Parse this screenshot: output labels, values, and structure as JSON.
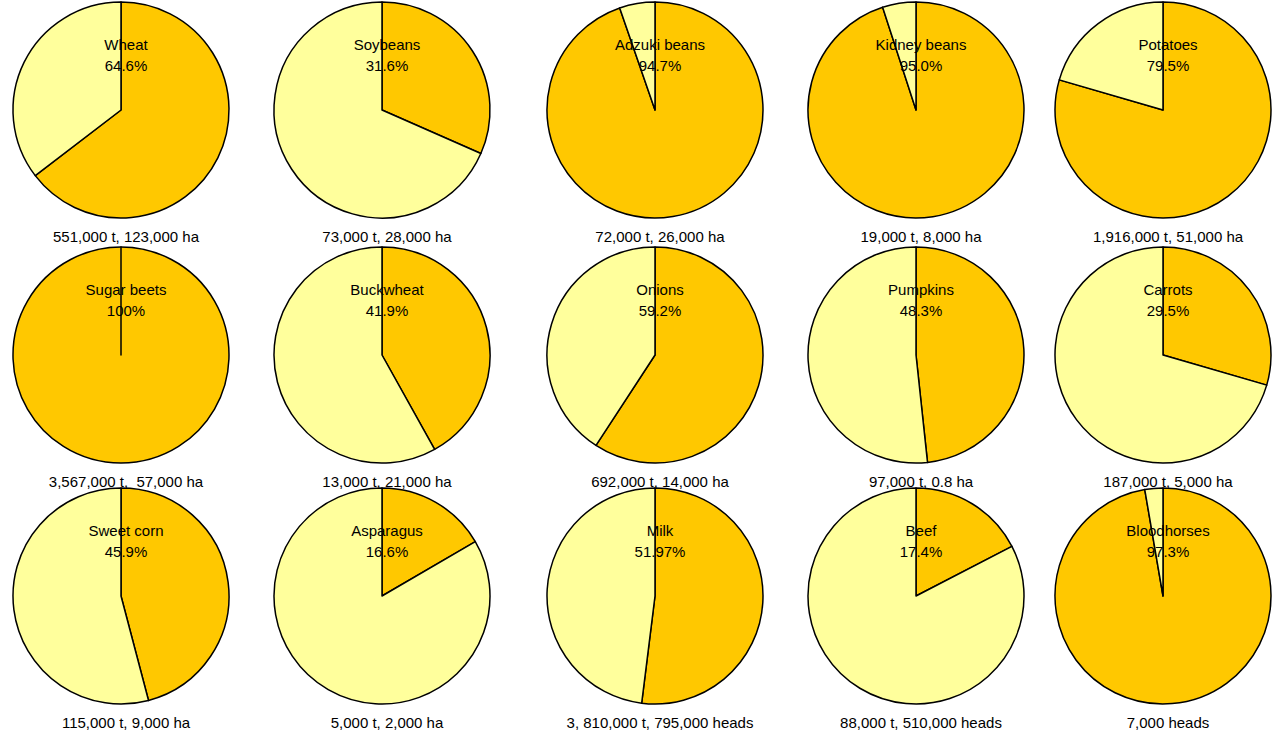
{
  "chart_data": [
    {
      "type": "pie",
      "title": "Wheat",
      "subtitle": "551,000 t, 123,000 ha",
      "values": [
        64.6,
        35.4
      ],
      "value_labels": [
        "64.6%",
        null
      ],
      "colors": [
        "#FFC800",
        "#FFFF9C"
      ]
    },
    {
      "type": "pie",
      "title": "Soybeans",
      "subtitle": "73,000 t, 28,000 ha",
      "values": [
        31.6,
        68.4
      ],
      "value_labels": [
        "31.6%",
        null
      ],
      "colors": [
        "#FFC800",
        "#FFFF9C"
      ]
    },
    {
      "type": "pie",
      "title": "Adzuki beans",
      "subtitle": "72,000 t, 26,000 ha",
      "values": [
        94.7,
        5.3
      ],
      "value_labels": [
        "94.7%",
        null
      ],
      "colors": [
        "#FFC800",
        "#FFFF9C"
      ]
    },
    {
      "type": "pie",
      "title": "Kidney beans",
      "subtitle": "19,000 t, 8,000 ha",
      "values": [
        95.0,
        5.0
      ],
      "value_labels": [
        "95.0%",
        null
      ],
      "colors": [
        "#FFC800",
        "#FFFF9C"
      ]
    },
    {
      "type": "pie",
      "title": "Potatoes",
      "subtitle": "1,916,000 t, 51,000 ha",
      "values": [
        79.5,
        20.5
      ],
      "value_labels": [
        "79.5%",
        null
      ],
      "colors": [
        "#FFC800",
        "#FFFF9C"
      ]
    },
    {
      "type": "pie",
      "title": "Sugar beets",
      "subtitle": "3,567,000 t,  57,000 ha",
      "values": [
        100,
        0
      ],
      "value_labels": [
        "100%",
        null
      ],
      "colors": [
        "#FFC800",
        "#FFFF9C"
      ]
    },
    {
      "type": "pie",
      "title": "Buckwheat",
      "subtitle": "13,000 t, 21,000 ha",
      "values": [
        41.9,
        58.1
      ],
      "value_labels": [
        "41.9%",
        null
      ],
      "colors": [
        "#FFC800",
        "#FFFF9C"
      ]
    },
    {
      "type": "pie",
      "title": "Onions",
      "subtitle": "692,000 t, 14,000 ha",
      "values": [
        59.2,
        40.8
      ],
      "value_labels": [
        "59.2%",
        null
      ],
      "colors": [
        "#FFC800",
        "#FFFF9C"
      ]
    },
    {
      "type": "pie",
      "title": "Pumpkins",
      "subtitle": "97,000 t, 0.8 ha",
      "values": [
        48.3,
        51.7
      ],
      "value_labels": [
        "48.3%",
        null
      ],
      "colors": [
        "#FFC800",
        "#FFFF9C"
      ]
    },
    {
      "type": "pie",
      "title": "Carrots",
      "subtitle": "187,000 t, 5,000 ha",
      "values": [
        29.5,
        70.5
      ],
      "value_labels": [
        "29.5%",
        null
      ],
      "colors": [
        "#FFC800",
        "#FFFF9C"
      ]
    },
    {
      "type": "pie",
      "title": "Sweet corn",
      "subtitle": "115,000 t, 9,000 ha",
      "values": [
        45.9,
        54.1
      ],
      "value_labels": [
        "45.9%",
        null
      ],
      "colors": [
        "#FFC800",
        "#FFFF9C"
      ]
    },
    {
      "type": "pie",
      "title": "Asparagus",
      "subtitle": "5,000 t, 2,000 ha",
      "values": [
        16.6,
        83.4
      ],
      "value_labels": [
        "16.6%",
        null
      ],
      "colors": [
        "#FFC800",
        "#FFFF9C"
      ]
    },
    {
      "type": "pie",
      "title": "Milk",
      "subtitle": "3, 810,000 t, 795,000 heads",
      "values": [
        51.97,
        48.03
      ],
      "value_labels": [
        "51.97%",
        null
      ],
      "colors": [
        "#FFC800",
        "#FFFF9C"
      ]
    },
    {
      "type": "pie",
      "title": "Beef",
      "subtitle": "88,000 t, 510,000 heads",
      "values": [
        17.4,
        82.6
      ],
      "value_labels": [
        "17.4%",
        null
      ],
      "colors": [
        "#FFC800",
        "#FFFF9C"
      ]
    },
    {
      "type": "pie",
      "title": "Bloodhorses",
      "subtitle": "7,000 heads",
      "values": [
        97.3,
        2.7
      ],
      "value_labels": [
        "97.3%",
        null
      ],
      "colors": [
        "#FFC800",
        "#FFFF9C"
      ]
    }
  ]
}
